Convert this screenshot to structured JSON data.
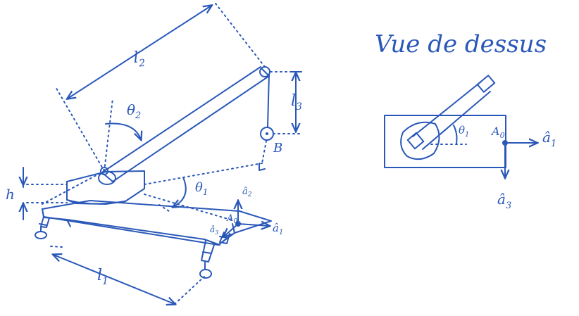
{
  "colors": {
    "ink": "#2a58b8",
    "background": "#ffffff"
  },
  "labels": {
    "length_2": "l",
    "length_2_sub": "2",
    "length_3": "l",
    "length_3_sub": "3",
    "length_1": "l",
    "length_1_sub": "1",
    "angle_2": "θ",
    "angle_2_sub": "2",
    "angle_1": "θ",
    "angle_1_sub": "1",
    "height": "h",
    "point_b": "B",
    "origin": "A",
    "origin_sub": "0",
    "unit_a1": "â",
    "unit_a1_sub": "1",
    "unit_a2": "â",
    "unit_a2_sub": "2",
    "unit_a3": "â",
    "unit_a3_sub": "3"
  },
  "top_view": {
    "title": "Vue de dessus",
    "angle": "θ",
    "angle_sub": "1",
    "origin": "A",
    "origin_sub": "0",
    "unit_a1": "â",
    "unit_a1_sub": "1",
    "unit_a3": "â",
    "unit_a3_sub": "3"
  }
}
